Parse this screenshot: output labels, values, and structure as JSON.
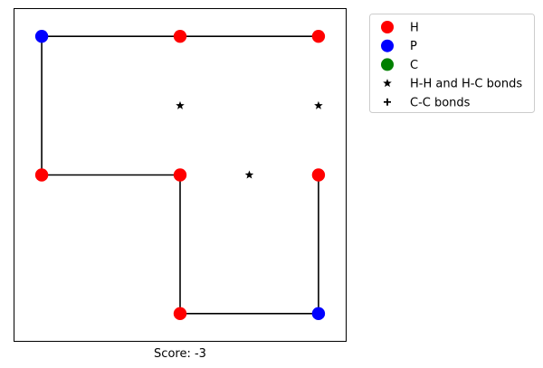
{
  "chart_data": {
    "type": "scatter",
    "title": "",
    "xlabel": "Score: -3",
    "ylabel": "",
    "xlim": [
      -0.2,
      2.2
    ],
    "ylim": [
      -0.2,
      2.2
    ],
    "grid": false,
    "ticks_visible": false,
    "legend_position": "outside top-right",
    "colors": {
      "H": "#ff0000",
      "P": "#0000ff",
      "C": "#008000",
      "line": "#000000",
      "marker": "#000000"
    },
    "chain": [
      {
        "x": 0,
        "y": 2,
        "type": "P"
      },
      {
        "x": 1,
        "y": 2,
        "type": "H"
      },
      {
        "x": 2,
        "y": 2,
        "type": "H"
      },
      {
        "x": 0,
        "y": 1,
        "type": "H"
      },
      {
        "x": 1,
        "y": 1,
        "type": "H"
      },
      {
        "x": 2,
        "y": 1,
        "type": "H"
      },
      {
        "x": 1,
        "y": 0,
        "type": "H"
      },
      {
        "x": 2,
        "y": 0,
        "type": "P"
      }
    ],
    "chain_segments": [
      [
        [
          1,
          2
        ],
        [
          0,
          2
        ]
      ],
      [
        [
          0,
          2
        ],
        [
          0,
          1
        ]
      ],
      [
        [
          0,
          1
        ],
        [
          1,
          1
        ]
      ],
      [
        [
          1,
          1
        ],
        [
          1,
          0
        ]
      ],
      [
        [
          1,
          0
        ],
        [
          2,
          0
        ]
      ],
      [
        [
          2,
          0
        ],
        [
          2,
          1
        ]
      ],
      [
        [
          2,
          2
        ],
        [
          1,
          2
        ]
      ]
    ],
    "hh_hc_bonds": [
      {
        "x": 1,
        "y": 1.5
      },
      {
        "x": 2,
        "y": 1.5
      },
      {
        "x": 1.5,
        "y": 1
      }
    ],
    "cc_bonds": [],
    "legend": [
      {
        "label": "H",
        "marker": "circle",
        "color": "#ff0000"
      },
      {
        "label": "P",
        "marker": "circle",
        "color": "#0000ff"
      },
      {
        "label": "C",
        "marker": "circle",
        "color": "#008000"
      },
      {
        "label": "H-H and H-C bonds",
        "marker": "star",
        "color": "#000000"
      },
      {
        "label": "C-C bonds",
        "marker": "plus",
        "color": "#000000"
      }
    ]
  }
}
